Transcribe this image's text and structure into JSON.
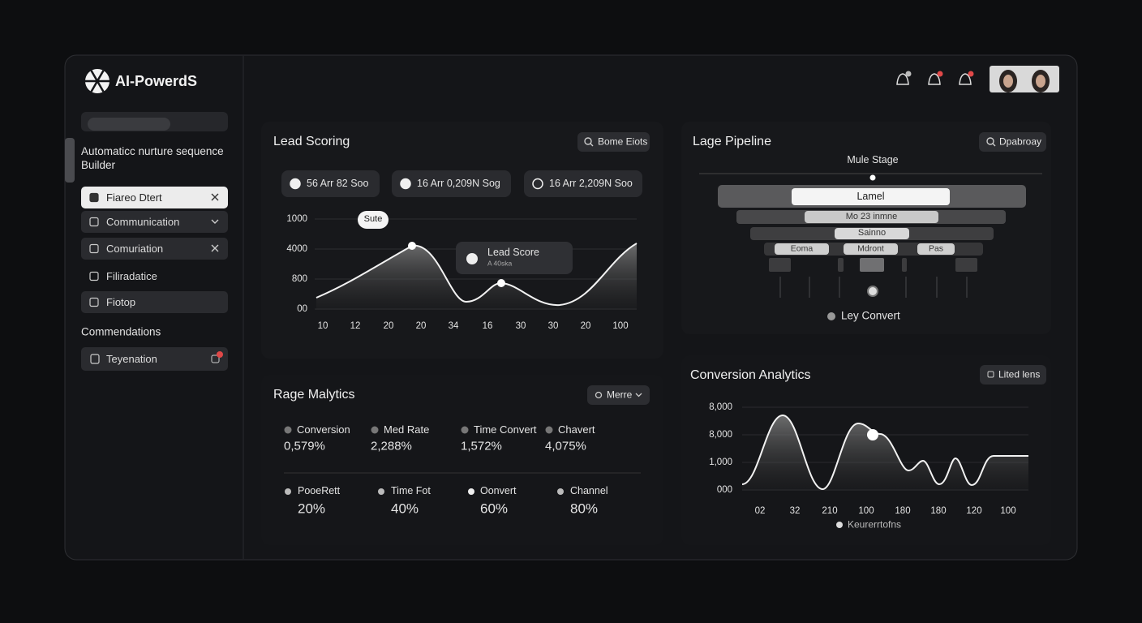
{
  "brand": "AI-PowerdS",
  "sidebar": {
    "title": "Automaticc nurture sequence Builder",
    "items": [
      "Fiareo Dtert",
      "Communication",
      "Comuriation",
      "Filiradatice",
      "Fiotop"
    ],
    "section": "Commendations",
    "section_items": [
      "Teyenation"
    ]
  },
  "lead_scoring": {
    "title": "Lead Scoring",
    "button": "Bome Eiots",
    "chips": [
      "56 Arr 82 Soo",
      "16 Arr 0,209N Sog",
      "16 Arr 2,209N Soo"
    ],
    "y_labels": [
      "1000",
      "4000",
      "800",
      "00"
    ],
    "x_labels": [
      "10",
      "12",
      "20",
      "20",
      "34",
      "16",
      "30",
      "30",
      "20",
      "100"
    ],
    "badge": "Sute",
    "tooltip_title": "Lead Score",
    "tooltip_text": "A 40ska"
  },
  "pipeline": {
    "title": "Lage Pipeline",
    "button": "Dpabroay",
    "stage_label": "Mule Stage",
    "stages": [
      "Lamel",
      "Mo 23 inmne",
      "Sainno",
      "Eoma",
      "Mdront",
      "Pas"
    ],
    "legend": "Ley Convert"
  },
  "range_analytics": {
    "title": "Rage Malytics",
    "button": "Merre",
    "metrics": [
      {
        "label": "Conversion",
        "value": "0,579%"
      },
      {
        "label": "Med Rate",
        "value": "2,288%"
      },
      {
        "label": "Time Convert",
        "value": "1,572%"
      },
      {
        "label": "Chavert",
        "value": "4,075%"
      }
    ],
    "shares": [
      {
        "label": "PooeRett",
        "value": "20%"
      },
      {
        "label": "Time Fot",
        "value": "40%"
      },
      {
        "label": "Oonvert",
        "value": "60%"
      },
      {
        "label": "Channel",
        "value": "80%"
      }
    ]
  },
  "conversion_analytics": {
    "title": "Conversion Analytics",
    "button": "Lited lens",
    "y_labels": [
      "8,000",
      "8,000",
      "1,000",
      "000"
    ],
    "x_labels": [
      "02",
      "32",
      "210",
      "100",
      "180",
      "180",
      "120",
      "100"
    ],
    "legend": "Keurerrtofns"
  }
}
